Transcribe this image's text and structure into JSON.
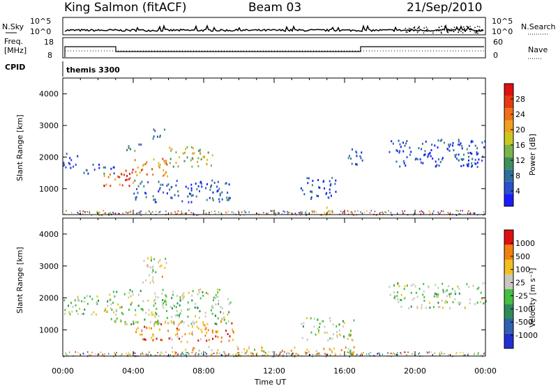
{
  "header": {
    "station": "King Salmon (fitACF)",
    "beam": "Beam 03",
    "date": "21/Sep/2010"
  },
  "top_panel": {
    "nsky_label": "N.Sky",
    "nsearch_label": "N.Search",
    "freq_label_1": "Freq.",
    "freq_label_2": "[MHz]",
    "nave_label": "Nave",
    "cpid_label": "CPID",
    "cpid_name": "themis 3300",
    "noise_ticks": [
      "10^5",
      "10^0"
    ],
    "freq_ticks": [
      "18",
      "8"
    ],
    "nave_ticks": [
      "60",
      "0"
    ]
  },
  "x_axis": {
    "label": "Time UT",
    "ticks": [
      "00:00",
      "04:00",
      "08:00",
      "12:00",
      "16:00",
      "20:00",
      "00:00"
    ]
  },
  "chart_data": [
    {
      "type": "heatmap",
      "title": "",
      "xlabel": "Time UT",
      "ylabel": "Slant Range [km]",
      "ylim": [
        180,
        4500
      ],
      "xlim": [
        0,
        24
      ],
      "yticks": [
        "1000",
        "2000",
        "3000",
        "4000"
      ],
      "colorbar": {
        "label": "Power [dB]",
        "ticks": [
          "4",
          "8",
          "12",
          "16",
          "20",
          "24",
          "28"
        ],
        "colors": [
          "#1a1aff",
          "#2a4fd0",
          "#2e6e9e",
          "#3f8f5f",
          "#7ab548",
          "#c8c820",
          "#f0a020",
          "#f07018",
          "#e83a12",
          "#e01010"
        ]
      },
      "regions": [
        {
          "t": [
            0.0,
            1.0
          ],
          "r": [
            1650,
            2150
          ],
          "level": 0.15
        },
        {
          "t": [
            1.0,
            3.0
          ],
          "r": [
            1500,
            1800
          ],
          "level": 0.2
        },
        {
          "t": [
            2.3,
            4.0
          ],
          "r": [
            1100,
            1700
          ],
          "level": 0.85
        },
        {
          "t": [
            4.0,
            6.0
          ],
          "r": [
            1400,
            2000
          ],
          "level": 0.7
        },
        {
          "t": [
            6.0,
            8.5
          ],
          "r": [
            1700,
            2350
          ],
          "level": 0.5
        },
        {
          "t": [
            4.0,
            9.5
          ],
          "r": [
            600,
            1300
          ],
          "level": 0.2
        },
        {
          "t": [
            5.0,
            5.8
          ],
          "r": [
            2600,
            3000
          ],
          "level": 0.3
        },
        {
          "t": [
            3.5,
            4.5
          ],
          "r": [
            2200,
            2500
          ],
          "level": 0.3
        },
        {
          "t": [
            13.5,
            15.5
          ],
          "r": [
            700,
            1400
          ],
          "level": 0.15
        },
        {
          "t": [
            16.0,
            17.0
          ],
          "r": [
            1700,
            2300
          ],
          "level": 0.15
        },
        {
          "t": [
            18.5,
            24.0
          ],
          "r": [
            1700,
            2600
          ],
          "level": 0.15
        },
        {
          "t": [
            14.5,
            15.5
          ],
          "r": [
            200,
            450
          ],
          "level": 0.6
        }
      ]
    },
    {
      "type": "heatmap",
      "title": "",
      "xlabel": "Time UT",
      "ylabel": "Slant Range [km]",
      "ylim": [
        180,
        4500
      ],
      "xlim": [
        0,
        24
      ],
      "yticks": [
        "1000",
        "2000",
        "3000",
        "4000"
      ],
      "colorbar": {
        "label": "Velocity [m s⁻¹]",
        "ticks": [
          "1000",
          "500",
          "100",
          "25",
          "-25",
          "-100",
          "-500",
          "-1000"
        ],
        "colors": [
          "#2030d0",
          "#3060b0",
          "#2e8b57",
          "#44c040",
          "#c8c8c0",
          "#f0c020",
          "#f08010",
          "#e01010"
        ]
      },
      "regions": [
        {
          "t": [
            0.0,
            3.0
          ],
          "r": [
            1500,
            2100
          ],
          "level": 0.5
        },
        {
          "t": [
            2.5,
            9.5
          ],
          "r": [
            1200,
            2300
          ],
          "level": 0.5
        },
        {
          "t": [
            4.0,
            10.0
          ],
          "r": [
            650,
            1300
          ],
          "level": 0.75
        },
        {
          "t": [
            4.5,
            6.0
          ],
          "r": [
            2500,
            3300
          ],
          "level": 0.6
        },
        {
          "t": [
            13.5,
            16.5
          ],
          "r": [
            700,
            1400
          ],
          "level": 0.5
        },
        {
          "t": [
            18.5,
            24.0
          ],
          "r": [
            1700,
            2500
          ],
          "level": 0.5
        },
        {
          "t": [
            6.0,
            16.5
          ],
          "r": [
            200,
            500
          ],
          "level": 0.65
        }
      ]
    }
  ]
}
